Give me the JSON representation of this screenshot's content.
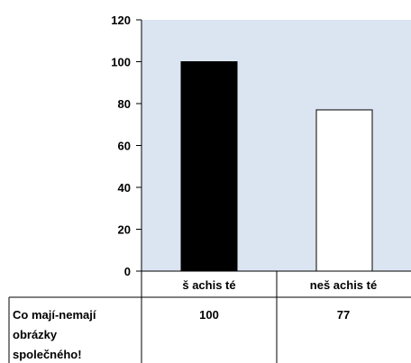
{
  "chart_data": {
    "type": "bar",
    "categories": [
      "š achis té",
      "neš achis té"
    ],
    "values": [
      100,
      77
    ],
    "ylim": [
      0,
      120
    ],
    "yticks": [
      "0",
      "20",
      "40",
      "60",
      "80",
      "100",
      "120"
    ],
    "grid": false,
    "bar_colors": [
      "#000000",
      "#ffffff"
    ],
    "plot_background": "#dbe5f1",
    "table": {
      "row_label_lines": [
        "Co mají-nemají",
        "obrázky",
        "společného!"
      ],
      "values_text": [
        "100",
        "77"
      ]
    }
  }
}
